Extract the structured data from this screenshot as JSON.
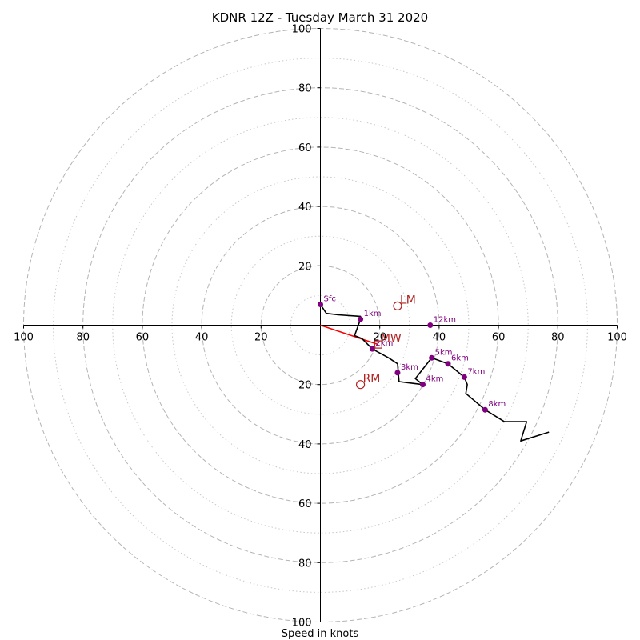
{
  "chart_data": {
    "type": "hodograph",
    "title": "KDNR 12Z - Tuesday March 31 2020",
    "xlabel": "Speed in knots",
    "range": [
      -100,
      100
    ],
    "rings_major": [
      20,
      40,
      60,
      80,
      100
    ],
    "rings_minor": [
      10,
      30,
      50,
      70,
      90
    ],
    "x_ticks": [
      "100",
      "80",
      "60",
      "40",
      "20",
      "20",
      "40",
      "60",
      "80",
      "100"
    ],
    "y_ticks": [
      "100",
      "80",
      "60",
      "40",
      "20",
      "20",
      "40",
      "60",
      "80",
      "100"
    ],
    "x_tick_values": [
      -100,
      -80,
      -60,
      -40,
      -20,
      20,
      40,
      60,
      80,
      100
    ],
    "y_tick_values": [
      100,
      80,
      60,
      40,
      20,
      -20,
      -40,
      -60,
      -80,
      -100
    ],
    "profile": {
      "u": [
        0,
        2,
        6,
        13.5,
        13.5,
        11.5,
        14,
        17.5,
        23,
        26,
        26.5,
        34.5,
        32,
        37.5,
        43,
        48.5,
        49.5,
        49,
        55.5,
        62,
        69.5,
        67.5,
        77
      ],
      "v": [
        7,
        4,
        3.5,
        3,
        2,
        -3.5,
        -4.5,
        -8,
        -11,
        -13,
        -19,
        -20,
        -18,
        -11,
        -13,
        -17.5,
        -20,
        -23,
        -28.5,
        -32.5,
        -32.5,
        -39,
        -36
      ],
      "color": "#000000"
    },
    "levels": [
      {
        "label": "Sfc",
        "u": 0,
        "v": 7
      },
      {
        "label": "1km",
        "u": 13.5,
        "v": 2
      },
      {
        "label": "2km",
        "u": 17.5,
        "v": -8
      },
      {
        "label": "3km",
        "u": 26,
        "v": -16
      },
      {
        "label": "4km",
        "u": 34.5,
        "v": -20
      },
      {
        "label": "5km",
        "u": 37.5,
        "v": -11
      },
      {
        "label": "6km",
        "u": 43,
        "v": -13
      },
      {
        "label": "7km",
        "u": 48.5,
        "v": -17.5
      },
      {
        "label": "8km",
        "u": 55.5,
        "v": -28.5
      },
      {
        "label": "12km",
        "u": 37,
        "v": 0
      }
    ],
    "level_color": "#800080",
    "motions": [
      {
        "label": "LM",
        "marker": "circle",
        "u": 26,
        "v": 6.5
      },
      {
        "label": "RM",
        "marker": "circle",
        "u": 13.5,
        "v": -20
      },
      {
        "label": "MW",
        "marker": "square",
        "u": 19.5,
        "v": -6.5
      }
    ],
    "motion_color": "#b22222",
    "shear_vector": {
      "u": 19.5,
      "v": -6.5,
      "color": "#ff0000"
    }
  }
}
